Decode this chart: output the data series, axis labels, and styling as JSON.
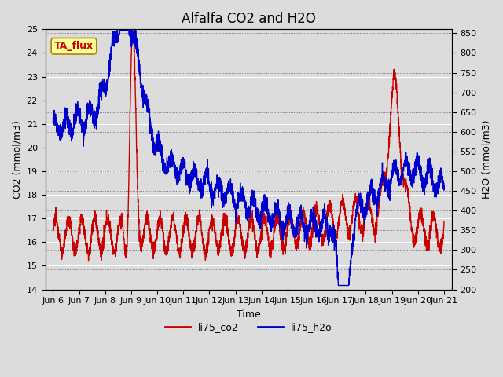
{
  "title": "Alfalfa CO2 and H2O",
  "xlabel": "Time",
  "ylabel_left": "CO2 (mmol/m3)",
  "ylabel_right": "H2O (mmol/m3)",
  "co2_label": "li75_co2",
  "h2o_label": "li75_h2o",
  "co2_color": "#cc0000",
  "h2o_color": "#0000cc",
  "ylim_left": [
    14.0,
    25.0
  ],
  "ylim_right": [
    200,
    860
  ],
  "yticks_left": [
    14.0,
    15.0,
    16.0,
    17.0,
    18.0,
    19.0,
    20.0,
    21.0,
    22.0,
    23.0,
    24.0,
    25.0
  ],
  "yticks_right": [
    200,
    250,
    300,
    350,
    400,
    450,
    500,
    550,
    600,
    650,
    700,
    750,
    800,
    850
  ],
  "background_color": "#dcdcdc",
  "plot_bg_color": "#dcdcdc",
  "grid_color": "#ffffff",
  "annotation_text": "TA_flux",
  "annotation_bg": "#ffff99",
  "annotation_border": "#aa8800",
  "title_fontsize": 12,
  "axis_label_fontsize": 9,
  "tick_label_fontsize": 8,
  "legend_fontsize": 9,
  "line_width": 1.0,
  "xtick_labels": [
    "Jun 6",
    "Jun 7",
    "Jun 8",
    "Jun 9",
    "Jun 10",
    "Jun 11",
    "Jun 12",
    "Jun 13",
    "Jun 14",
    "Jun 15",
    "Jun 16",
    "Jun 17",
    "Jun 18",
    "Jun 19",
    "Jun 20",
    "Jun 21"
  ],
  "n_days": 15,
  "figwidth": 6.4,
  "figheight": 4.8,
  "dpi": 100
}
